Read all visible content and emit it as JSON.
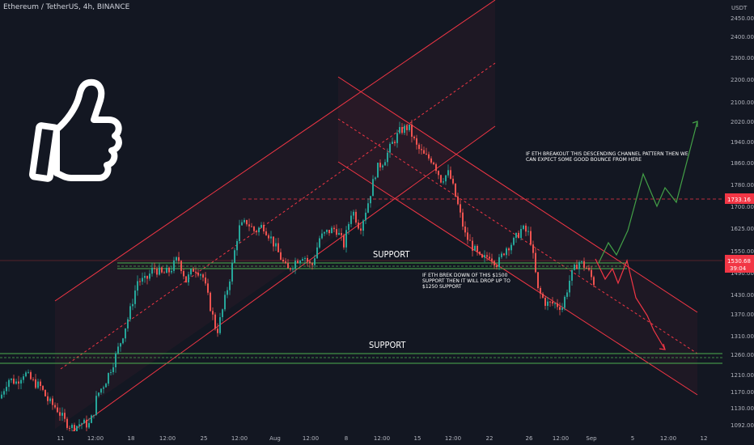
{
  "header": {
    "title": "Ethereum / TetherUS, 4h, BINANCE"
  },
  "price_axis": {
    "currency": "USDT",
    "labels": [
      "2450.00",
      "2400.00",
      "2300.00",
      "2200.00",
      "2100.00",
      "2020.00",
      "1940.00",
      "1860.00",
      "1780.00",
      "1700.00",
      "1625.00",
      "1550.00",
      "1490.00",
      "1430.00",
      "1370.00",
      "1310.00",
      "1260.00",
      "1210.00",
      "1170.00",
      "1130.00",
      "1092.00"
    ],
    "level_line_value": 1733,
    "level_tag": "1733.16",
    "current_price_tag": "1530.68",
    "countdown_tag": "39:04",
    "colors": {
      "level_tag": "#f23645",
      "current_tag": "#f23645"
    }
  },
  "time_axis": {
    "labels": [
      "11",
      "12:00",
      "18",
      "12:00",
      "25",
      "12:00",
      "Aug",
      "12:00",
      "8",
      "12:00",
      "15",
      "12:00",
      "22",
      "26",
      "12:00",
      "Sep",
      "5",
      "12:00",
      "12"
    ]
  },
  "annotations": {
    "support_upper": "SUPPORT",
    "support_lower": "SUPPORT",
    "breakdown_note": [
      "IF ETH BREK DOWN OF THIS $1500",
      "SUPPORT THEN IT WILL DROP UP TO",
      "$1250 SUPPORT"
    ],
    "breakout_note": [
      "IF ETH BREAKOUT THIS DESCENDING CHANNEL PATTERN THEN WE",
      "CAN EXPECT SOME GOOD BOUNCE FROM HERE"
    ]
  },
  "icons": {
    "thumbs_up": "thumbs-up-icon"
  },
  "colors": {
    "up": "#26a69a",
    "down": "#ef5350",
    "channel": "#f23645",
    "support": "#4caf50",
    "bull_path": "#43a047",
    "bear_path": "#f23645"
  },
  "chart_data": {
    "type": "candlestick",
    "title": "Ethereum / TetherUS, 4h, BINANCE",
    "y_unit": "USDT",
    "ylim": [
      1080,
      2500
    ],
    "close_series": [
      [
        0,
        1180
      ],
      [
        10,
        1240
      ],
      [
        20,
        1230
      ],
      [
        30,
        1260
      ],
      [
        40,
        1232
      ],
      [
        50,
        1215
      ],
      [
        60,
        1170
      ],
      [
        70,
        1150
      ],
      [
        80,
        1110
      ],
      [
        90,
        1090
      ],
      [
        100,
        1105
      ],
      [
        110,
        1100
      ],
      [
        115,
        1130
      ],
      [
        120,
        1190
      ],
      [
        130,
        1230
      ],
      [
        140,
        1290
      ],
      [
        150,
        1360
      ],
      [
        160,
        1440
      ],
      [
        170,
        1540
      ],
      [
        180,
        1540
      ],
      [
        190,
        1580
      ],
      [
        200,
        1560
      ],
      [
        210,
        1570
      ],
      [
        220,
        1610
      ],
      [
        230,
        1540
      ],
      [
        240,
        1580
      ],
      [
        250,
        1560
      ],
      [
        260,
        1460
      ],
      [
        268,
        1380
      ],
      [
        275,
        1450
      ],
      [
        285,
        1560
      ],
      [
        295,
        1700
      ],
      [
        305,
        1720
      ],
      [
        315,
        1690
      ],
      [
        325,
        1710
      ],
      [
        335,
        1670
      ],
      [
        345,
        1620
      ],
      [
        355,
        1570
      ],
      [
        365,
        1600
      ],
      [
        375,
        1620
      ],
      [
        385,
        1580
      ],
      [
        395,
        1670
      ],
      [
        405,
        1690
      ],
      [
        415,
        1700
      ],
      [
        425,
        1650
      ],
      [
        435,
        1760
      ],
      [
        445,
        1700
      ],
      [
        455,
        1780
      ],
      [
        465,
        1880
      ],
      [
        475,
        1910
      ],
      [
        485,
        1960
      ],
      [
        495,
        2000
      ],
      [
        505,
        2010
      ],
      [
        515,
        1950
      ],
      [
        525,
        1920
      ],
      [
        535,
        1910
      ],
      [
        545,
        1850
      ],
      [
        555,
        1870
      ],
      [
        565,
        1780
      ],
      [
        575,
        1680
      ],
      [
        585,
        1640
      ],
      [
        595,
        1600
      ],
      [
        605,
        1620
      ],
      [
        615,
        1590
      ],
      [
        625,
        1640
      ],
      [
        635,
        1660
      ],
      [
        645,
        1700
      ],
      [
        655,
        1680
      ],
      [
        665,
        1510
      ],
      [
        675,
        1470
      ],
      [
        685,
        1470
      ],
      [
        695,
        1460
      ],
      [
        705,
        1550
      ],
      [
        715,
        1600
      ],
      [
        725,
        1580
      ],
      [
        735,
        1530
      ]
    ],
    "levels": {
      "support_1": 1510,
      "support_2": 1255,
      "resistance_dashed": 1733
    }
  }
}
